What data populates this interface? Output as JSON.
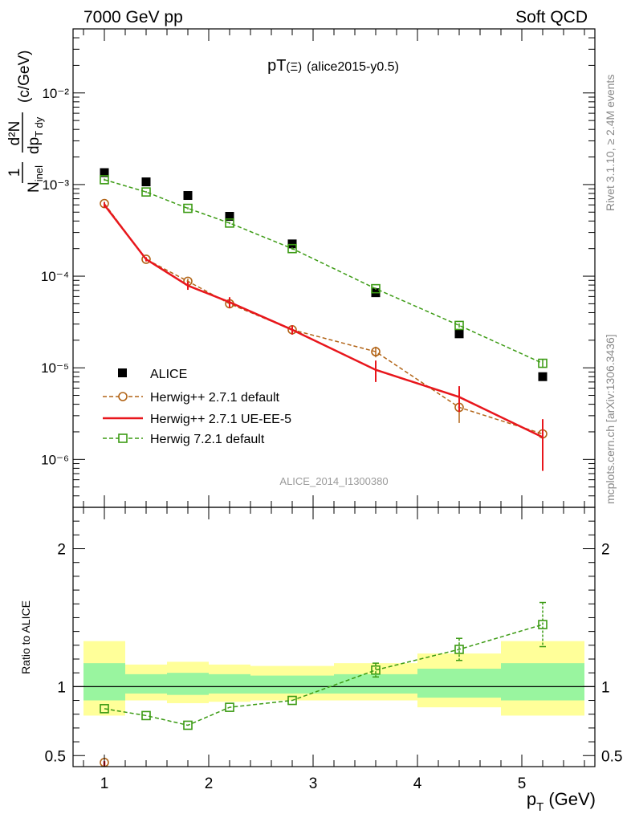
{
  "header": {
    "left": "7000 GeV pp",
    "right": "Soft QCD"
  },
  "side_labels": {
    "rivet": "Rivet 3.1.10, ≥ 2.4M events",
    "mcplots": "mcplots.cern.ch [arXiv:1306.3436]"
  },
  "watermark": "ALICE_2014_I1300380",
  "chart_data": [
    {
      "type": "line",
      "title": "pT(Ξ) (alice2015-y0.5)",
      "title_parts": {
        "main": "pT",
        "particle": "(Ξ)",
        "tag": "(alice2015-y0.5)"
      },
      "ylabel": "1/N_inel d²N/dp_T dy (c/GeV)",
      "ylabel_parts": {
        "one": "1",
        "n": "N",
        "inel": "inel",
        "d2n": "d²N",
        "dp": "dp",
        "tdy": "T dy",
        "unit": "(c/GeV)"
      },
      "yscale": "log",
      "ylim": [
        3e-07,
        0.05
      ],
      "xlim": [
        0.7,
        5.7
      ],
      "y_tick_labels": [
        "10⁻²",
        "10⁻³",
        "10⁻⁴",
        "10⁻⁵",
        "10⁻⁶"
      ],
      "legend_position": "lower-left",
      "series": [
        {
          "name": "ALICE",
          "style": "data-square",
          "color": "#000000",
          "x": [
            1.0,
            1.4,
            1.8,
            2.2,
            2.8,
            3.6,
            4.4,
            5.2
          ],
          "y": [
            0.00135,
            0.00107,
            0.00076,
            0.00045,
            0.000225,
            6.6e-05,
            2.35e-05,
            8e-06
          ]
        },
        {
          "name": "Herwig++ 2.7.1 default",
          "style": "dashed-circle",
          "color": "#b26417",
          "x": [
            1.0,
            1.4,
            1.8,
            2.2,
            2.8,
            3.6,
            4.4,
            5.2
          ],
          "y": [
            0.00062,
            0.000153,
            8.8e-05,
            5e-05,
            2.6e-05,
            1.5e-05,
            3.7e-06,
            1.9e-06
          ],
          "err": [
            3e-05,
            8e-06,
            6e-06,
            5e-06,
            2e-06,
            2e-06,
            1.2e-06,
            8e-07
          ]
        },
        {
          "name": "Herwig++ 2.7.1 UE-EE-5",
          "style": "solid",
          "color": "#e8161c",
          "x": [
            1.0,
            1.4,
            1.8,
            2.2,
            2.8,
            3.6,
            4.4,
            5.2
          ],
          "y": [
            0.0006,
            0.000153,
            7.9e-05,
            5.2e-05,
            2.6e-05,
            9.5e-06,
            4.8e-06,
            1.75e-06
          ],
          "err": [
            4e-05,
            8e-06,
            8e-06,
            7e-06,
            3e-06,
            2.5e-06,
            1.5e-06,
            1e-06
          ]
        },
        {
          "name": "Herwig 7.2.1 default",
          "style": "dashed-square",
          "color": "#3c9b14",
          "x": [
            1.0,
            1.4,
            1.8,
            2.2,
            2.8,
            3.6,
            4.4,
            5.2
          ],
          "y": [
            0.00113,
            0.00083,
            0.00055,
            0.00038,
            0.0002,
            7.3e-05,
            2.9e-05,
            1.12e-05
          ],
          "err": [
            3e-05,
            2e-05,
            1.5e-05,
            1e-05,
            6e-06,
            2e-06,
            1.5e-06,
            1.2e-06
          ]
        }
      ]
    },
    {
      "type": "line",
      "ylabel": "Ratio to ALICE",
      "xlabel": "p_T (GeV)",
      "xlabel_parts": {
        "p": "p",
        "t": "T",
        "unit": "(GeV)"
      },
      "xlim": [
        0.7,
        5.7
      ],
      "ylim": [
        0.42,
        2.3
      ],
      "x_tick_labels": [
        "1",
        "2",
        "3",
        "4",
        "5"
      ],
      "y_tick_labels": [
        "0.5",
        "1",
        "2"
      ],
      "bins": [
        [
          0.8,
          1.2
        ],
        [
          1.2,
          1.6
        ],
        [
          1.6,
          2.0
        ],
        [
          2.0,
          2.4
        ],
        [
          2.4,
          3.2
        ],
        [
          3.2,
          4.0
        ],
        [
          4.0,
          4.8
        ],
        [
          4.8,
          5.6
        ]
      ],
      "band_yellow": [
        [
          0.79,
          1.33
        ],
        [
          0.9,
          1.16
        ],
        [
          0.88,
          1.18
        ],
        [
          0.89,
          1.16
        ],
        [
          0.9,
          1.15
        ],
        [
          0.9,
          1.17
        ],
        [
          0.85,
          1.24
        ],
        [
          0.79,
          1.33
        ]
      ],
      "band_green": [
        [
          0.9,
          1.17
        ],
        [
          0.95,
          1.09
        ],
        [
          0.94,
          1.1
        ],
        [
          0.95,
          1.09
        ],
        [
          0.95,
          1.08
        ],
        [
          0.95,
          1.09
        ],
        [
          0.92,
          1.13
        ],
        [
          0.9,
          1.17
        ]
      ],
      "series": [
        {
          "name": "Herwig 7.2.1 default",
          "color": "#3c9b14",
          "x": [
            1.0,
            1.4,
            1.8,
            2.2,
            2.8,
            3.6,
            4.4,
            5.2
          ],
          "y": [
            0.84,
            0.79,
            0.72,
            0.85,
            0.9,
            1.12,
            1.27,
            1.45
          ],
          "err": [
            0.01,
            0.01,
            0.01,
            0.01,
            0.01,
            0.05,
            0.08,
            0.16
          ]
        },
        {
          "name": "Herwig++ 2.7.1 default",
          "color": "#b26417",
          "x": [
            1.0
          ],
          "y": [
            0.45
          ],
          "err": [
            0.02
          ]
        },
        {
          "name": "Herwig++ 2.7.1 UE-EE-5",
          "color": "#e8161c",
          "x": [
            1.0
          ],
          "y": [
            0.43
          ],
          "err": [
            0.03
          ]
        }
      ]
    }
  ]
}
